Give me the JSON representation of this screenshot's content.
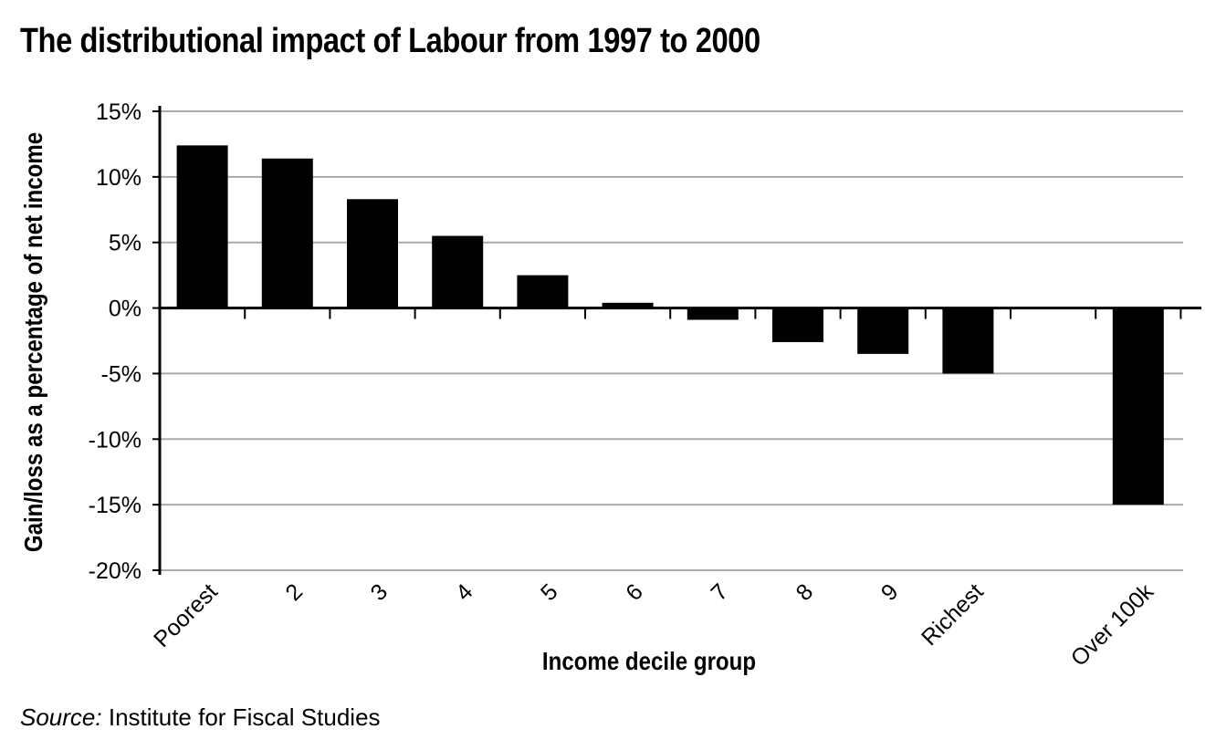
{
  "title": "The distributional impact of Labour from 1997 to 2000",
  "source_label": "Source:",
  "source_text": "Institute for Fiscal Studies",
  "chart_data": {
    "type": "bar",
    "title": "The distributional impact of Labour from 1997 to 2000",
    "xlabel": "Income decile group",
    "ylabel": "Gain/loss as a percentage of net income",
    "categories": [
      "Poorest",
      "2",
      "3",
      "4",
      "5",
      "6",
      "7",
      "8",
      "9",
      "Richest",
      "",
      "Over 100k"
    ],
    "values": [
      12.4,
      11.4,
      8.3,
      5.5,
      2.5,
      0.4,
      -0.9,
      -2.6,
      -3.5,
      -5.0,
      null,
      -15.0
    ],
    "ylim": [
      -20,
      15
    ],
    "yticks": [
      15,
      10,
      5,
      0,
      -5,
      -10,
      -15,
      -20
    ],
    "ytick_labels": [
      "15%",
      "10%",
      "5%",
      "0%",
      "-5%",
      "-10%",
      "-15%",
      "-20%"
    ],
    "grid": true,
    "bar_color": "#000000",
    "grid_color": "#aaaaaa"
  }
}
